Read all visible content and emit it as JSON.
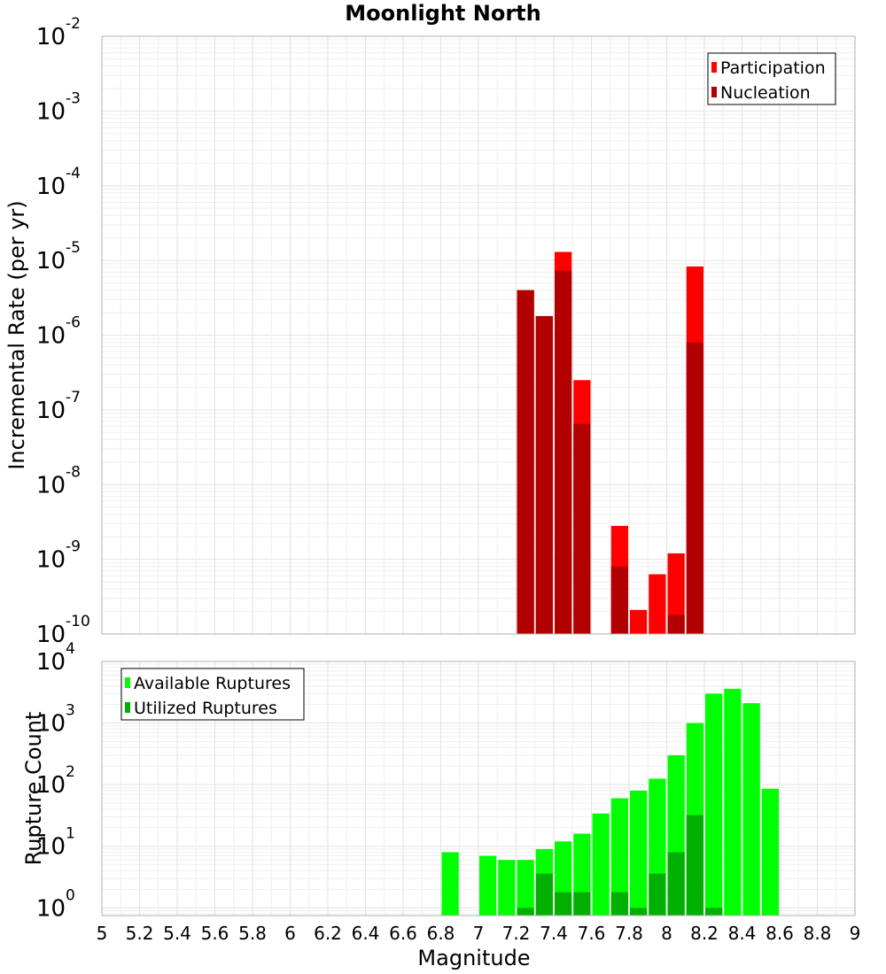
{
  "chart_data": [
    {
      "type": "bar",
      "title": "Moonlight North",
      "xlabel": "",
      "ylabel": "Incremental Rate (per yr)",
      "yscale": "log",
      "ylim": [
        1e-10,
        0.01
      ],
      "xlim": [
        5,
        9
      ],
      "y_ticks": [
        {
          "base": "10",
          "exp": "-10"
        },
        {
          "base": "10",
          "exp": "-9"
        },
        {
          "base": "10",
          "exp": "-8"
        },
        {
          "base": "10",
          "exp": "-7"
        },
        {
          "base": "10",
          "exp": "-6"
        },
        {
          "base": "10",
          "exp": "-5"
        },
        {
          "base": "10",
          "exp": "-4"
        },
        {
          "base": "10",
          "exp": "-3"
        },
        {
          "base": "10",
          "exp": "-2"
        }
      ],
      "grid": true,
      "legend_position": "top-right",
      "x": [
        7.25,
        7.35,
        7.45,
        7.55,
        7.75,
        7.85,
        7.95,
        8.05,
        8.15
      ],
      "series": [
        {
          "name": "Participation",
          "color": "#ff0000",
          "values": [
            4e-06,
            1.8e-06,
            1.3e-05,
            2.5e-07,
            2.8e-09,
            2.1e-10,
            6.3e-10,
            1.2e-09,
            8.3e-06
          ]
        },
        {
          "name": "Nucleation",
          "color": "#b20000",
          "values": [
            4e-06,
            1.8e-06,
            7.3e-06,
            6.5e-08,
            8e-10,
            0,
            0,
            1.8e-10,
            8e-07
          ]
        }
      ]
    },
    {
      "type": "bar",
      "title": "",
      "xlabel": "Magnitude",
      "ylabel": "Rupture Count",
      "yscale": "log",
      "ylim": [
        0.75,
        10000
      ],
      "xlim": [
        5,
        9
      ],
      "y_ticks": [
        {
          "base": "10",
          "exp": "0"
        },
        {
          "base": "10",
          "exp": "1"
        },
        {
          "base": "10",
          "exp": "2"
        },
        {
          "base": "10",
          "exp": "3"
        },
        {
          "base": "10",
          "exp": "4"
        }
      ],
      "x_ticks": [
        "5",
        "5.2",
        "5.4",
        "5.6",
        "5.8",
        "6",
        "6.2",
        "6.4",
        "6.6",
        "6.8",
        "7",
        "7.2",
        "7.4",
        "7.6",
        "7.8",
        "8",
        "8.2",
        "8.4",
        "8.6",
        "8.8",
        "9"
      ],
      "grid": true,
      "legend_position": "top-left",
      "x": [
        6.85,
        7.05,
        7.15,
        7.25,
        7.35,
        7.45,
        7.55,
        7.65,
        7.75,
        7.85,
        7.95,
        8.05,
        8.15,
        8.25,
        8.35,
        8.45,
        8.55
      ],
      "series": [
        {
          "name": "Available Ruptures",
          "color": "#00ff00",
          "values": [
            8,
            7,
            6,
            6,
            9,
            12,
            16,
            34,
            60,
            80,
            125,
            300,
            1000,
            3000,
            3600,
            2100,
            86
          ]
        },
        {
          "name": "Utilized Ruptures",
          "color": "#00b000",
          "values": [
            0,
            0,
            0,
            1,
            3.6,
            1.8,
            1.8,
            0,
            1.8,
            1,
            3.6,
            8,
            32,
            1,
            0,
            0,
            0
          ]
        }
      ]
    }
  ]
}
